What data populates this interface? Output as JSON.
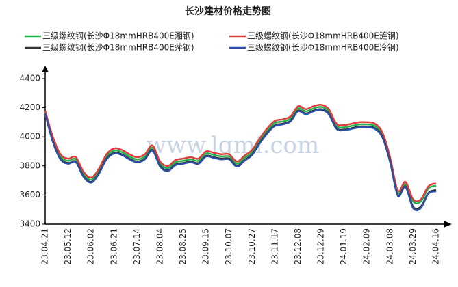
{
  "chart_data": {
    "type": "line",
    "title": "长沙建材价格走势图",
    "watermark": "www.lgmi.com",
    "categories": [
      "23.04.21",
      null,
      null,
      "23.05.12",
      null,
      null,
      "23.06.02",
      null,
      null,
      "23.06.21",
      null,
      null,
      "23.07.14",
      null,
      null,
      "23.08.04",
      null,
      null,
      "23.08.25",
      null,
      null,
      "23.09.15",
      null,
      null,
      "23.10.07",
      null,
      null,
      "23.10.27",
      null,
      null,
      "23.11.17",
      null,
      null,
      "23.12.08",
      null,
      null,
      "23.12.29",
      null,
      null,
      "24.01.19",
      null,
      null,
      "24.02.09",
      null,
      null,
      "24.03.08",
      null,
      null,
      "24.03.29",
      null,
      null,
      "24.04.16"
    ],
    "series": [
      {
        "name": "三级螺纹钢(长沙Φ18mmHRB400E湘钢)",
        "color": "#22b14c",
        "values": [
          4170,
          3985,
          3865,
          3835,
          3845,
          3745,
          3705,
          3765,
          3865,
          3905,
          3895,
          3865,
          3845,
          3865,
          3925,
          3815,
          3785,
          3825,
          3835,
          3845,
          3835,
          3885,
          3875,
          3865,
          3865,
          3815,
          3855,
          3895,
          3975,
          4045,
          4095,
          4105,
          4125,
          4195,
          4175,
          4195,
          4205,
          4175,
          4075,
          4065,
          4075,
          4085,
          4085,
          4075,
          4015,
          3845,
          3615,
          3675,
          3555,
          3555,
          3645,
          3665
        ]
      },
      {
        "name": "三级螺纹钢(长沙Φ18mmHRB400E涟钢)",
        "color": "#e03c3c",
        "values": [
          4180,
          4000,
          3880,
          3850,
          3860,
          3760,
          3720,
          3780,
          3880,
          3920,
          3910,
          3880,
          3860,
          3880,
          3940,
          3830,
          3800,
          3840,
          3850,
          3860,
          3850,
          3900,
          3890,
          3880,
          3880,
          3830,
          3870,
          3910,
          3990,
          4060,
          4110,
          4120,
          4140,
          4210,
          4190,
          4210,
          4220,
          4190,
          4090,
          4080,
          4090,
          4100,
          4100,
          4090,
          4030,
          3860,
          3630,
          3690,
          3570,
          3570,
          3660,
          3680
        ]
      },
      {
        "name": "三级螺纹钢(长沙Φ18mmHRB400E萍钢)",
        "color": "#333333",
        "values": [
          4160,
          3970,
          3850,
          3820,
          3830,
          3730,
          3690,
          3750,
          3850,
          3890,
          3880,
          3850,
          3830,
          3850,
          3910,
          3800,
          3770,
          3810,
          3820,
          3830,
          3820,
          3870,
          3860,
          3850,
          3850,
          3800,
          3840,
          3880,
          3960,
          4030,
          4080,
          4090,
          4110,
          4180,
          4160,
          4180,
          4190,
          4160,
          4060,
          4050,
          4060,
          4070,
          4070,
          4060,
          4000,
          3830,
          3600,
          3660,
          3520,
          3520,
          3615,
          3635
        ]
      },
      {
        "name": "三级螺纹钢(长沙Φ18mmHRB400E冷钢)",
        "color": "#2a4fa8",
        "values": [
          4160,
          3965,
          3845,
          3815,
          3825,
          3725,
          3685,
          3745,
          3845,
          3885,
          3875,
          3845,
          3825,
          3845,
          3905,
          3795,
          3765,
          3805,
          3815,
          3825,
          3815,
          3865,
          3855,
          3845,
          3845,
          3795,
          3835,
          3875,
          3955,
          4025,
          4075,
          4085,
          4105,
          4175,
          4155,
          4175,
          4185,
          4155,
          4055,
          4045,
          4055,
          4065,
          4065,
          4055,
          3995,
          3825,
          3595,
          3655,
          3510,
          3510,
          3610,
          3625
        ]
      }
    ],
    "ylim": [
      3400,
      4400
    ],
    "yticks": [
      3400,
      3600,
      3800,
      4000,
      4200,
      4400
    ],
    "grid": false
  }
}
